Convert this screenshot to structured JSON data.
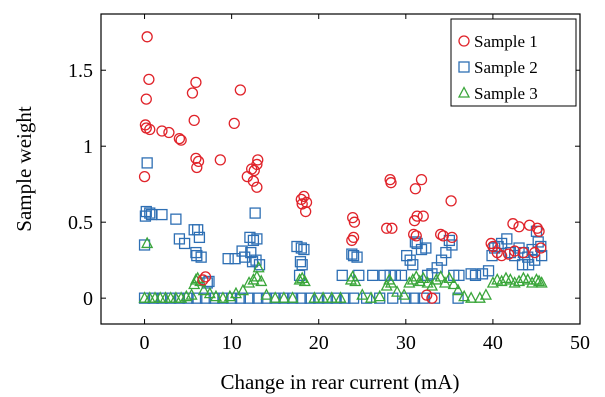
{
  "chart_data": {
    "type": "scatter",
    "xlabel": "Change in rear current (mA)",
    "ylabel": "Sample weight",
    "xlim": [
      -5,
      50
    ],
    "ylim": [
      -0.17,
      1.87
    ],
    "xticks": [
      0,
      10,
      20,
      30,
      40,
      50
    ],
    "yticks": [
      0,
      0.5,
      1,
      1.5
    ],
    "legend_position": "top-right",
    "series": [
      {
        "name": "Sample 1",
        "marker": "circle",
        "color": "#e0232a",
        "points": [
          [
            0.3,
            1.72
          ],
          [
            0.5,
            1.44
          ],
          [
            0.2,
            1.31
          ],
          [
            0.1,
            1.14
          ],
          [
            0.2,
            1.12
          ],
          [
            0.6,
            1.11
          ],
          [
            0.0,
            0.8
          ],
          [
            2.0,
            1.1
          ],
          [
            2.8,
            1.09
          ],
          [
            4.0,
            1.05
          ],
          [
            4.2,
            1.04
          ],
          [
            5.5,
            1.35
          ],
          [
            5.9,
            1.42
          ],
          [
            5.7,
            1.17
          ],
          [
            5.9,
            0.92
          ],
          [
            6.2,
            0.9
          ],
          [
            6.0,
            0.86
          ],
          [
            8.7,
            0.91
          ],
          [
            10.3,
            1.15
          ],
          [
            11.0,
            1.37
          ],
          [
            11.8,
            0.8
          ],
          [
            12.3,
            0.85
          ],
          [
            12.9,
            0.88
          ],
          [
            13.0,
            0.91
          ],
          [
            12.6,
            0.84
          ],
          [
            12.5,
            0.77
          ],
          [
            12.9,
            0.73
          ],
          [
            7.0,
            0.14
          ],
          [
            6.7,
            0.12
          ],
          [
            18.0,
            0.65
          ],
          [
            18.3,
            0.67
          ],
          [
            18.6,
            0.63
          ],
          [
            18.1,
            0.62
          ],
          [
            18.5,
            0.57
          ],
          [
            23.9,
            0.53
          ],
          [
            24.1,
            0.5
          ],
          [
            24.0,
            0.4
          ],
          [
            23.8,
            0.38
          ],
          [
            28.2,
            0.78
          ],
          [
            28.3,
            0.76
          ],
          [
            27.8,
            0.46
          ],
          [
            28.4,
            0.46
          ],
          [
            31.1,
            0.72
          ],
          [
            31.8,
            0.78
          ],
          [
            31.0,
            0.51
          ],
          [
            31.3,
            0.54
          ],
          [
            32.0,
            0.54
          ],
          [
            30.9,
            0.42
          ],
          [
            31.2,
            0.41
          ],
          [
            34.0,
            0.42
          ],
          [
            35.2,
            0.64
          ],
          [
            34.3,
            0.41
          ],
          [
            35.3,
            0.4
          ],
          [
            33.0,
            0.0
          ],
          [
            32.4,
            0.02
          ],
          [
            39.8,
            0.36
          ],
          [
            40.0,
            0.34
          ],
          [
            42.3,
            0.49
          ],
          [
            43.0,
            0.47
          ],
          [
            44.2,
            0.48
          ],
          [
            45.3,
            0.44
          ],
          [
            45.1,
            0.46
          ],
          [
            41.8,
            0.29
          ],
          [
            42.5,
            0.31
          ],
          [
            43.5,
            0.3
          ],
          [
            44.8,
            0.3
          ],
          [
            45.5,
            0.33
          ],
          [
            40.5,
            0.3
          ],
          [
            41.0,
            0.28
          ]
        ]
      },
      {
        "name": "Sample 2",
        "marker": "square",
        "color": "#2e6fb4",
        "points": [
          [
            0.3,
            0.89
          ],
          [
            0.2,
            0.57
          ],
          [
            0.6,
            0.56
          ],
          [
            0.8,
            0.55
          ],
          [
            0.1,
            0.54
          ],
          [
            0.0,
            0.35
          ],
          [
            2.0,
            0.55
          ],
          [
            3.6,
            0.52
          ],
          [
            4.0,
            0.39
          ],
          [
            4.6,
            0.36
          ],
          [
            5.7,
            0.45
          ],
          [
            6.1,
            0.45
          ],
          [
            6.3,
            0.4
          ],
          [
            5.9,
            0.3
          ],
          [
            6.0,
            0.28
          ],
          [
            6.5,
            0.27
          ],
          [
            7.2,
            0.1
          ],
          [
            7.4,
            0.11
          ],
          [
            9.6,
            0.26
          ],
          [
            10.4,
            0.26
          ],
          [
            11.2,
            0.31
          ],
          [
            11.5,
            0.27
          ],
          [
            12.1,
            0.4
          ],
          [
            12.5,
            0.38
          ],
          [
            12.9,
            0.39
          ],
          [
            12.7,
            0.56
          ],
          [
            12.2,
            0.3
          ],
          [
            12.4,
            0.24
          ],
          [
            12.8,
            0.25
          ],
          [
            13.2,
            0.22
          ],
          [
            17.5,
            0.34
          ],
          [
            18.0,
            0.33
          ],
          [
            18.3,
            0.32
          ],
          [
            17.9,
            0.24
          ],
          [
            18.1,
            0.22
          ],
          [
            17.8,
            0.15
          ],
          [
            22.7,
            0.15
          ],
          [
            23.8,
            0.29
          ],
          [
            24.0,
            0.28
          ],
          [
            24.4,
            0.27
          ],
          [
            24.6,
            0.15
          ],
          [
            26.2,
            0.15
          ],
          [
            27.5,
            0.15
          ],
          [
            28.2,
            0.15
          ],
          [
            28.8,
            0.15
          ],
          [
            29.5,
            0.15
          ],
          [
            30.1,
            0.28
          ],
          [
            30.5,
            0.25
          ],
          [
            30.8,
            0.22
          ],
          [
            31.1,
            0.37
          ],
          [
            31.3,
            0.36
          ],
          [
            31.8,
            0.32
          ],
          [
            32.3,
            0.33
          ],
          [
            32.5,
            0.15
          ],
          [
            33.0,
            0.16
          ],
          [
            33.6,
            0.2
          ],
          [
            34.1,
            0.25
          ],
          [
            34.6,
            0.3
          ],
          [
            35.0,
            0.38
          ],
          [
            35.3,
            0.35
          ],
          [
            35.5,
            0.15
          ],
          [
            36.1,
            0.15
          ],
          [
            37.5,
            0.16
          ],
          [
            38.0,
            0.15
          ],
          [
            38.8,
            0.16
          ],
          [
            39.5,
            0.18
          ],
          [
            39.9,
            0.28
          ],
          [
            40.2,
            0.33
          ],
          [
            40.6,
            0.34
          ],
          [
            41.0,
            0.36
          ],
          [
            41.6,
            0.39
          ],
          [
            42.0,
            0.3
          ],
          [
            42.5,
            0.28
          ],
          [
            43.0,
            0.33
          ],
          [
            43.5,
            0.3
          ],
          [
            44.0,
            0.27
          ],
          [
            44.5,
            0.32
          ],
          [
            45.0,
            0.44
          ],
          [
            45.2,
            0.37
          ],
          [
            45.5,
            0.34
          ],
          [
            45.6,
            0.28
          ],
          [
            44.8,
            0.25
          ],
          [
            44.1,
            0.22
          ],
          [
            43.4,
            0.22
          ],
          [
            0.0,
            0.0
          ],
          [
            1.0,
            0.0
          ],
          [
            2.0,
            0.0
          ],
          [
            3.0,
            0.0
          ],
          [
            4.0,
            0.0
          ],
          [
            5.0,
            0.0
          ],
          [
            6.0,
            0.0
          ],
          [
            7.0,
            0.0
          ],
          [
            8.0,
            0.0
          ],
          [
            9.0,
            0.0
          ],
          [
            10.0,
            0.0
          ],
          [
            11.0,
            0.0
          ],
          [
            12.0,
            0.0
          ],
          [
            13.0,
            0.0
          ],
          [
            14.0,
            0.0
          ],
          [
            15.0,
            0.0
          ],
          [
            16.0,
            0.0
          ],
          [
            17.0,
            0.0
          ],
          [
            18.0,
            0.0
          ],
          [
            19.0,
            0.0
          ],
          [
            20.0,
            0.0
          ],
          [
            21.0,
            0.0
          ],
          [
            22.0,
            0.0
          ],
          [
            23.0,
            0.0
          ],
          [
            24.0,
            0.0
          ],
          [
            25.5,
            0.0
          ],
          [
            27.0,
            0.0
          ],
          [
            28.5,
            0.0
          ],
          [
            30.0,
            0.0
          ],
          [
            31.0,
            0.0
          ],
          [
            32.0,
            0.0
          ],
          [
            33.3,
            0.0
          ],
          [
            36.0,
            0.0
          ]
        ]
      },
      {
        "name": "Sample 3",
        "marker": "triangle",
        "color": "#3aa63a",
        "points": [
          [
            0.3,
            0.36
          ],
          [
            0.0,
            0.0
          ],
          [
            0.6,
            0.0
          ],
          [
            1.2,
            0.0
          ],
          [
            1.8,
            0.0
          ],
          [
            2.4,
            0.0
          ],
          [
            3.0,
            0.0
          ],
          [
            3.6,
            0.0
          ],
          [
            4.2,
            0.0
          ],
          [
            4.8,
            0.01
          ],
          [
            5.4,
            0.02
          ],
          [
            5.7,
            0.09
          ],
          [
            5.9,
            0.12
          ],
          [
            6.1,
            0.13
          ],
          [
            6.4,
            0.11
          ],
          [
            6.8,
            0.05
          ],
          [
            7.5,
            0.03
          ],
          [
            8.2,
            0.01
          ],
          [
            9.0,
            0.0
          ],
          [
            9.8,
            0.01
          ],
          [
            10.5,
            0.03
          ],
          [
            11.3,
            0.05
          ],
          [
            12.0,
            0.1
          ],
          [
            12.5,
            0.12
          ],
          [
            12.9,
            0.14
          ],
          [
            13.1,
            0.2
          ],
          [
            13.4,
            0.11
          ],
          [
            14.0,
            0.02
          ],
          [
            15.0,
            0.0
          ],
          [
            16.0,
            0.0
          ],
          [
            17.0,
            0.0
          ],
          [
            17.8,
            0.12
          ],
          [
            18.1,
            0.13
          ],
          [
            18.4,
            0.11
          ],
          [
            19.5,
            0.0
          ],
          [
            20.5,
            0.0
          ],
          [
            21.5,
            0.0
          ],
          [
            22.5,
            0.0
          ],
          [
            23.7,
            0.12
          ],
          [
            23.9,
            0.14
          ],
          [
            24.2,
            0.11
          ],
          [
            25.0,
            0.02
          ],
          [
            26.0,
            0.0
          ],
          [
            27.0,
            0.01
          ],
          [
            27.8,
            0.08
          ],
          [
            28.1,
            0.12
          ],
          [
            28.3,
            0.1
          ],
          [
            29.0,
            0.04
          ],
          [
            29.8,
            0.02
          ],
          [
            30.4,
            0.1
          ],
          [
            30.8,
            0.12
          ],
          [
            31.2,
            0.14
          ],
          [
            31.6,
            0.11
          ],
          [
            32.0,
            0.13
          ],
          [
            32.5,
            0.1
          ],
          [
            33.0,
            0.08
          ],
          [
            33.5,
            0.12
          ],
          [
            34.0,
            0.14
          ],
          [
            34.5,
            0.1
          ],
          [
            35.0,
            0.13
          ],
          [
            35.5,
            0.09
          ],
          [
            36.0,
            0.05
          ],
          [
            36.7,
            0.01
          ],
          [
            37.5,
            0.0
          ],
          [
            38.5,
            0.0
          ],
          [
            39.2,
            0.02
          ],
          [
            40.0,
            0.1
          ],
          [
            40.5,
            0.12
          ],
          [
            41.0,
            0.11
          ],
          [
            41.5,
            0.13
          ],
          [
            42.0,
            0.12
          ],
          [
            42.5,
            0.1
          ],
          [
            43.0,
            0.11
          ],
          [
            43.5,
            0.13
          ],
          [
            44.0,
            0.12
          ],
          [
            44.5,
            0.1
          ],
          [
            45.0,
            0.12
          ],
          [
            45.3,
            0.11
          ],
          [
            45.6,
            0.1
          ]
        ]
      }
    ]
  }
}
